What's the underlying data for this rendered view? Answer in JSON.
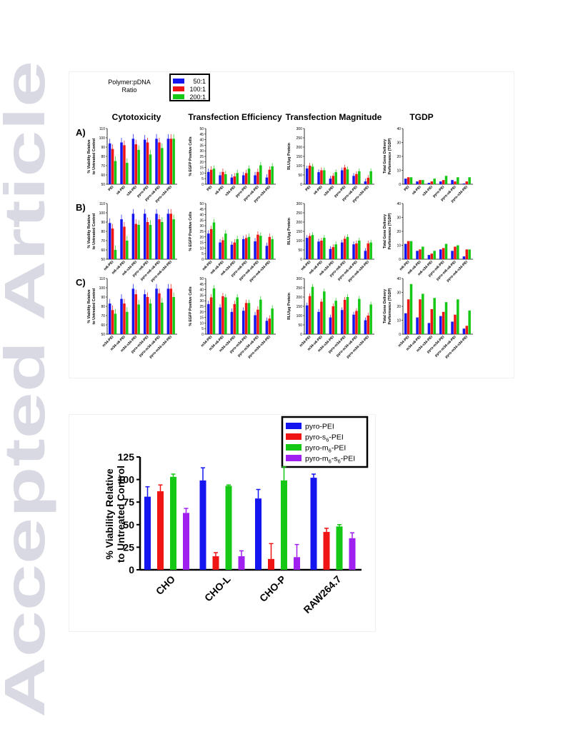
{
  "watermark": {
    "text": "Accepted Article",
    "color": "#d9d9e3"
  },
  "colors": {
    "blue": "#1515f0",
    "red": "#f01515",
    "green": "#15c815",
    "purple": "#a020f0"
  },
  "figure1": {
    "legend_title_line1": "Polymer:pDNA",
    "legend_title_line2": "Ratio",
    "legend_items": [
      "50:1",
      "100:1",
      "200:1"
    ],
    "col_titles": [
      "Cytotoxicity",
      "Transfection Efficiency",
      "Transfection Magnitude",
      "TGDP"
    ],
    "row_labels": [
      "A)",
      "B)",
      "C)"
    ],
    "ylabels": [
      [
        "% Viability Relative",
        "to Untreated Control"
      ],
      [
        "% EGFP Positive Cells"
      ],
      [
        "RLU/μg Protein"
      ],
      [
        "Total Gene Delivery",
        "Performance (TGDP)"
      ]
    ],
    "yranges": [
      [
        50,
        110
      ],
      [
        0,
        50
      ],
      [
        0,
        300
      ],
      [
        0,
        40
      ]
    ],
    "yticks": [
      [
        50,
        60,
        70,
        80,
        90,
        100,
        110
      ],
      [
        0,
        5,
        10,
        15,
        20,
        25,
        30,
        35,
        40,
        45,
        50
      ],
      [
        0,
        50,
        100,
        150,
        200,
        250,
        300
      ],
      [
        0,
        10,
        20,
        30,
        40
      ]
    ]
  },
  "chart_data": [
    {
      "type": "bar",
      "panel": "A-Cytotoxicity",
      "categories": [
        "PEI",
        "s6-PEI",
        "s34-PEI",
        "pyro-PEI",
        "pyro-s6-PEI",
        "pyro-s34-PEI"
      ],
      "series": [
        {
          "name": "50:1",
          "values": [
            94,
            95,
            99,
            98,
            99,
            99
          ]
        },
        {
          "name": "100:1",
          "values": [
            88,
            92,
            93,
            95,
            95,
            99
          ]
        },
        {
          "name": "200:1",
          "values": [
            75,
            73,
            87,
            82,
            89,
            99
          ]
        }
      ],
      "ylim": [
        50,
        110
      ]
    },
    {
      "type": "bar",
      "panel": "A-Transfection Efficiency",
      "categories": [
        "PEI",
        "s6-PEI",
        "s34-PEI",
        "pyro-PEI",
        "pyro-s6-PEI",
        "pyro-s34-PEI"
      ],
      "series": [
        {
          "name": "50:1",
          "values": [
            11,
            8,
            6,
            8,
            8,
            6
          ]
        },
        {
          "name": "100:1",
          "values": [
            13,
            11,
            7,
            10,
            11,
            13
          ]
        },
        {
          "name": "200:1",
          "values": [
            14,
            9,
            10,
            14,
            17,
            16
          ]
        }
      ],
      "ylim": [
        0,
        50
      ]
    },
    {
      "type": "bar",
      "panel": "A-Transfection Magnitude",
      "categories": [
        "PEI",
        "s6-PEI",
        "s34-PEI",
        "pyro-PEI",
        "pyro-s6-PEI",
        "pyro-s34-PEI"
      ],
      "series": [
        {
          "name": "50:1",
          "values": [
            85,
            65,
            30,
            75,
            45,
            15
          ]
        },
        {
          "name": "100:1",
          "values": [
            100,
            75,
            45,
            90,
            55,
            35
          ]
        },
        {
          "name": "200:1",
          "values": [
            95,
            75,
            65,
            80,
            70,
            70
          ]
        }
      ],
      "ylim": [
        0,
        300
      ]
    },
    {
      "type": "bar",
      "panel": "A-TGDP",
      "categories": [
        "PEI",
        "s6-PEI",
        "s34-PEI",
        "pyro-PEI",
        "pyro-s6-PEI",
        "pyro-s34-PEI"
      ],
      "series": [
        {
          "name": "50:1",
          "values": [
            4,
            2,
            1,
            2,
            3,
            0.5
          ]
        },
        {
          "name": "100:1",
          "values": [
            5,
            3,
            2,
            3,
            2,
            2
          ]
        },
        {
          "name": "200:1",
          "values": [
            5,
            3,
            4,
            6,
            5,
            5
          ]
        }
      ],
      "ylim": [
        0,
        40
      ]
    },
    {
      "type": "bar",
      "panel": "B-Cytotoxicity",
      "categories": [
        "m6-PEI",
        "m6-s6-PEI",
        "m6-s34-PEI",
        "pyro-m6-PEI",
        "pyro-m6-s6-PEI",
        "pyro-m6-s34-PEI"
      ],
      "series": [
        {
          "name": "50:1",
          "values": [
            89,
            93,
            99,
            99,
            99,
            99
          ]
        },
        {
          "name": "100:1",
          "values": [
            83,
            85,
            88,
            90,
            93,
            99
          ]
        },
        {
          "name": "200:1",
          "values": [
            60,
            70,
            87,
            87,
            90,
            93
          ]
        }
      ],
      "ylim": [
        50,
        110
      ]
    },
    {
      "type": "bar",
      "panel": "B-Transfection Efficiency",
      "categories": [
        "m6-PEI",
        "m6-s6-PEI",
        "m6-s34-PEI",
        "pyro-m6-PEI",
        "pyro-m6-s6-PEI",
        "pyro-m6-s34-PEI"
      ],
      "series": [
        {
          "name": "50:1",
          "values": [
            23,
            15,
            13,
            18,
            16,
            12
          ]
        },
        {
          "name": "100:1",
          "values": [
            27,
            17,
            15,
            19,
            22,
            20
          ]
        },
        {
          "name": "200:1",
          "values": [
            33,
            23,
            18,
            20,
            21,
            18
          ]
        }
      ],
      "ylim": [
        0,
        50
      ]
    },
    {
      "type": "bar",
      "panel": "B-Transfection Magnitude",
      "categories": [
        "m6-PEI",
        "m6-s6-PEI",
        "m6-s34-PEI",
        "pyro-m6-PEI",
        "pyro-m6-s6-PEI",
        "pyro-m6-s34-PEI"
      ],
      "series": [
        {
          "name": "50:1",
          "values": [
            115,
            95,
            55,
            90,
            80,
            45
          ]
        },
        {
          "name": "100:1",
          "values": [
            125,
            100,
            65,
            110,
            85,
            85
          ]
        },
        {
          "name": "200:1",
          "values": [
            130,
            115,
            80,
            120,
            100,
            90
          ]
        }
      ],
      "ylim": [
        0,
        300
      ]
    },
    {
      "type": "bar",
      "panel": "B-TGDP",
      "categories": [
        "m6-PEI",
        "m6-s6-PEI",
        "m6-s34-PEI",
        "pyro-m6-PEI",
        "pyro-m6-s6-PEI",
        "pyro-m6-s34-PEI"
      ],
      "series": [
        {
          "name": "50:1",
          "values": [
            11,
            6,
            3,
            7,
            6,
            2
          ]
        },
        {
          "name": "100:1",
          "values": [
            13,
            7,
            4,
            8,
            9,
            7
          ]
        },
        {
          "name": "200:1",
          "values": [
            13,
            9,
            6,
            11,
            10,
            7
          ]
        }
      ],
      "ylim": [
        0,
        40
      ]
    },
    {
      "type": "bar",
      "panel": "C-Cytotoxicity",
      "categories": [
        "m34-PEI",
        "m34-s6-PEI",
        "m34-s34-PEI",
        "pyro-m34-PEI",
        "pyro-m34-s6-PEI",
        "pyro-m34-s34-PEI"
      ],
      "series": [
        {
          "name": "50:1",
          "values": [
            83,
            88,
            99,
            93,
            99,
            99
          ]
        },
        {
          "name": "100:1",
          "values": [
            76,
            83,
            93,
            90,
            94,
            99
          ]
        },
        {
          "name": "200:1",
          "values": [
            72,
            74,
            82,
            83,
            84,
            90
          ]
        }
      ],
      "ylim": [
        50,
        110
      ]
    },
    {
      "type": "bar",
      "panel": "C-Transfection Efficiency",
      "categories": [
        "m34-PEI",
        "m34-s6-PEI",
        "m34-s34-PEI",
        "pyro-m34-PEI",
        "pyro-m34-s6-PEI",
        "pyro-m34-s34-PEI"
      ],
      "series": [
        {
          "name": "50:1",
          "values": [
            27,
            24,
            20,
            21,
            17,
            12
          ]
        },
        {
          "name": "100:1",
          "values": [
            33,
            34,
            27,
            28,
            22,
            14
          ]
        },
        {
          "name": "200:1",
          "values": [
            41,
            33,
            33,
            28,
            31,
            23
          ]
        }
      ],
      "ylim": [
        0,
        50
      ]
    },
    {
      "type": "bar",
      "panel": "C-Transfection Magnitude",
      "categories": [
        "m34-PEI",
        "m34-s6-PEI",
        "m34-s34-PEI",
        "pyro-m34-PEI",
        "pyro-m34-s6-PEI",
        "pyro-m34-s34-PEI"
      ],
      "series": [
        {
          "name": "50:1",
          "values": [
            155,
            120,
            90,
            130,
            105,
            75
          ]
        },
        {
          "name": "100:1",
          "values": [
            205,
            175,
            150,
            185,
            125,
            100
          ]
        },
        {
          "name": "200:1",
          "values": [
            255,
            230,
            180,
            200,
            190,
            160
          ]
        }
      ],
      "ylim": [
        0,
        300
      ]
    },
    {
      "type": "bar",
      "panel": "C-TGDP",
      "categories": [
        "m34-PEI",
        "m34-s6-PEI",
        "m34-s34-PEI",
        "pyro-m34-PEI",
        "pyro-m34-s6-PEI",
        "pyro-m34-s34-PEI"
      ],
      "series": [
        {
          "name": "50:1",
          "values": [
            15,
            12,
            8,
            13,
            9,
            4
          ]
        },
        {
          "name": "100:1",
          "values": [
            25,
            25,
            18,
            16,
            14,
            6
          ]
        },
        {
          "name": "200:1",
          "values": [
            36,
            29,
            26,
            23,
            25,
            17
          ]
        }
      ],
      "ylim": [
        0,
        40
      ]
    },
    {
      "type": "bar",
      "panel": "Viability by cell line",
      "categories": [
        "CHO",
        "CHO-L",
        "CHO-P",
        "RAW264.7"
      ],
      "ylabel_line1": "% Viability Relative",
      "ylabel_line2": "to Untreated Control",
      "ylim": [
        0,
        125
      ],
      "yticks": [
        0,
        25,
        50,
        75,
        100,
        125
      ],
      "legend_placement": "top-right",
      "series": [
        {
          "name": "pyro-PEI",
          "name_parts": [
            "pyro-PEI"
          ],
          "values": [
            81,
            99,
            79,
            102
          ],
          "err": [
            11,
            14,
            10,
            4
          ]
        },
        {
          "name": "pyro-s6-PEI",
          "name_parts": [
            "pyro-s",
            "6",
            "-PEI"
          ],
          "values": [
            87,
            15,
            12,
            42
          ],
          "err": [
            7,
            4,
            17,
            4
          ]
        },
        {
          "name": "pyro-m6-PEI",
          "name_parts": [
            "pyro-m",
            "6",
            "-PEI"
          ],
          "values": [
            103,
            93,
            99,
            48
          ],
          "err": [
            3,
            1,
            15,
            2
          ]
        },
        {
          "name": "pyro-m6-s6-PEI",
          "name_parts": [
            "pyro-m",
            "6",
            "-s",
            "6",
            "-PEI"
          ],
          "values": [
            63,
            15,
            14,
            35
          ],
          "err": [
            5,
            6,
            14,
            6
          ]
        }
      ]
    }
  ]
}
